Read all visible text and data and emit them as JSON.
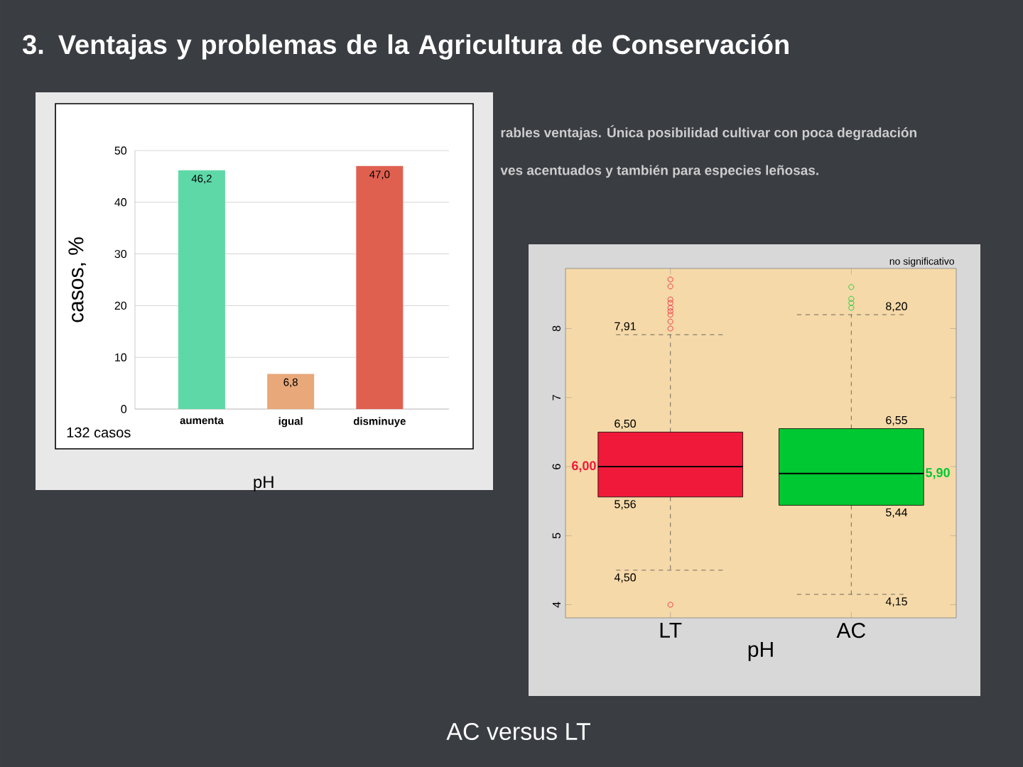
{
  "chart_data": [
    {
      "type": "bar",
      "title": "3.  Ventajas y problemas de la Agricultura de Conservación",
      "categories": [
        "aumenta",
        "igual",
        "disminuye"
      ],
      "values": [
        46.2,
        6.8,
        47.0
      ],
      "value_labels": [
        "46,2",
        "6,8",
        "47,0"
      ],
      "colors": [
        "#5fd8a8",
        "#e8a87a",
        "#e06050"
      ],
      "xlabel": "pH",
      "ylabel": "casos,  %",
      "ylim": [
        0,
        50
      ],
      "yticks": [
        0,
        10,
        20,
        30,
        40,
        50
      ],
      "grid": "y",
      "annotations": [
        "rables ventajas. Única posibilidad cultivar con poca degradación",
        "ves acentuados y también para especies leñosas.",
        "132 casos"
      ]
    },
    {
      "type": "box",
      "categories": [
        "LT",
        "AC"
      ],
      "colors": [
        "#f0193a",
        "#00c832"
      ],
      "xlabel": "pH",
      "boxes": [
        {
          "low": 4.5,
          "q1": 5.56,
          "median": 6.0,
          "q3": 6.5,
          "high": 7.91,
          "outliers": [
            4.0,
            8.0,
            8.1,
            8.2,
            8.25,
            8.3,
            8.37,
            8.42,
            8.61,
            8.71
          ]
        },
        {
          "low": 4.15,
          "q1": 5.44,
          "median": 5.9,
          "q3": 6.55,
          "high": 8.2,
          "outliers": [
            8.3,
            8.37,
            8.43,
            8.6
          ]
        }
      ],
      "ylim": [
        3.81,
        8.87
      ],
      "yticks": [
        4,
        5,
        6,
        7,
        8
      ],
      "annotations": [
        "no significativo",
        "AC versus LT",
        "7,91",
        "6,50",
        "6,00",
        "5,56",
        "4,50",
        "8,20",
        "6,55",
        "5,90",
        "5,44",
        "4,15"
      ]
    }
  ]
}
